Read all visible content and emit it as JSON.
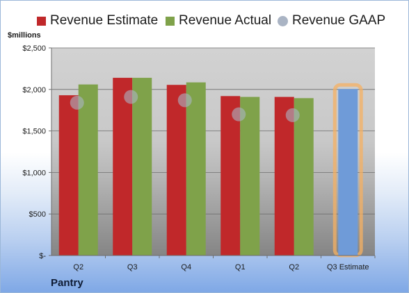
{
  "unit_label": "$millions",
  "company": "Pantry",
  "legend": [
    {
      "label": "Revenue Estimate",
      "color": "#c0282a",
      "shape": "square"
    },
    {
      "label": "Revenue Actual",
      "color": "#7fa24a",
      "shape": "square"
    },
    {
      "label": "Revenue GAAP",
      "color": "#aab4c4",
      "shape": "circle"
    }
  ],
  "chart_data": {
    "type": "bar",
    "categories": [
      "Q2",
      "Q3",
      "Q4",
      "Q1",
      "Q2",
      "Q3 Estimate"
    ],
    "series": [
      {
        "name": "Revenue Estimate",
        "values": [
          1930,
          2140,
          2055,
          1920,
          1910,
          null
        ],
        "color": "#c0282a"
      },
      {
        "name": "Revenue Actual",
        "values": [
          2060,
          2140,
          2085,
          1910,
          1895,
          null
        ],
        "color": "#7fa24a"
      },
      {
        "name": "Revenue GAAP",
        "values": [
          1840,
          1910,
          1870,
          1700,
          1690,
          null
        ],
        "color": "#aab4c4",
        "type": "scatter"
      }
    ],
    "estimate": {
      "category": "Q3 Estimate",
      "value": 2005,
      "color": "#6f9bd8",
      "highlight": "#f5b062"
    },
    "yticks": [
      0,
      500,
      1000,
      1500,
      2000,
      2500
    ],
    "ytick_labels": [
      "$-",
      "$500",
      "$1,000",
      "$1,500",
      "$2,000",
      "$2,500"
    ],
    "ylim": [
      0,
      2500
    ],
    "grid": true,
    "legend_position": "top"
  }
}
